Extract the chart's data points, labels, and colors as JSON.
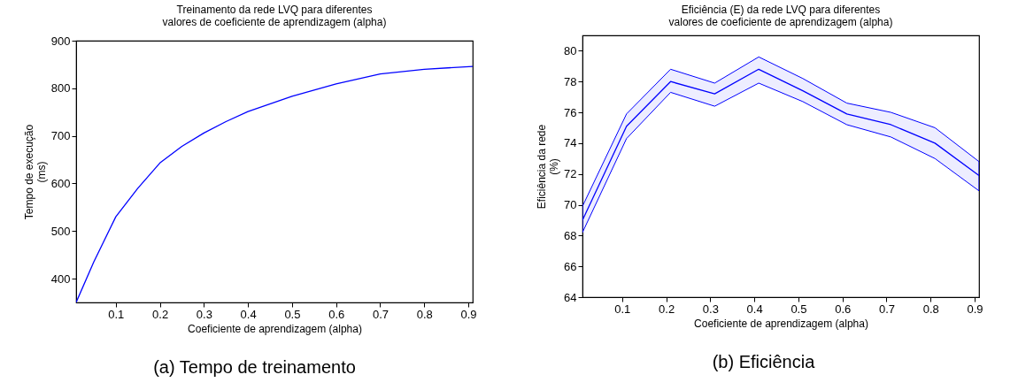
{
  "chart_data": [
    {
      "type": "line",
      "title": "Treinamento da rede LVQ para diferentes\nvalores de coeficiente de aprendizagem (alpha)",
      "xlabel": "Coeficiente de aprendizagem (alpha)",
      "ylabel": "Tempo de execução\n(ms)",
      "annotations": [
        "(a) Tempo de treinamento"
      ],
      "x": [
        0.01,
        0.05,
        0.1,
        0.15,
        0.2,
        0.25,
        0.3,
        0.35,
        0.4,
        0.5,
        0.6,
        0.7,
        0.8,
        0.91
      ],
      "series": [
        {
          "color": "#0000ff",
          "values": [
            350,
            435,
            530,
            590,
            643,
            678,
            706,
            730,
            751,
            783,
            809,
            830,
            840,
            846
          ]
        }
      ],
      "xlim": [
        0.01,
        0.91
      ],
      "xticks": [
        0.1,
        0.2,
        0.3,
        0.4,
        0.5,
        0.6,
        0.7,
        0.8,
        0.9
      ],
      "ylim": [
        350,
        900
      ],
      "yticks": [
        400,
        500,
        600,
        700,
        800,
        900
      ],
      "grid": false
    },
    {
      "type": "line",
      "title": "Eficiência (E) da rede LVQ para diferentes\nvalores de coeficiente de aprendizagem (alpha)",
      "xlabel": "Coeficiente de aprendizagem (alpha)",
      "ylabel": "Eficiência da rede\n(%)",
      "annotations": [
        "(b) Eficiência"
      ],
      "x": [
        0.01,
        0.11,
        0.21,
        0.31,
        0.41,
        0.51,
        0.61,
        0.71,
        0.81,
        0.91
      ],
      "series": [
        {
          "color": "#0000ff",
          "values": [
            69.0,
            75.1,
            78.0,
            77.2,
            78.8,
            77.4,
            75.9,
            75.2,
            74.0,
            71.9
          ],
          "lower": [
            68.2,
            74.3,
            77.3,
            76.4,
            77.9,
            76.7,
            75.2,
            74.4,
            73.0,
            70.9
          ],
          "upper": [
            69.9,
            75.9,
            78.8,
            77.9,
            79.6,
            78.2,
            76.6,
            76.0,
            75.0,
            72.8
          ]
        }
      ],
      "xlim": [
        0.01,
        0.91
      ],
      "xticks": [
        0.1,
        0.2,
        0.3,
        0.4,
        0.5,
        0.6,
        0.7,
        0.8,
        0.9
      ],
      "ylim": [
        64,
        81
      ],
      "yticks": [
        64,
        66,
        68,
        70,
        72,
        74,
        76,
        78,
        80
      ],
      "grid": false
    }
  ]
}
